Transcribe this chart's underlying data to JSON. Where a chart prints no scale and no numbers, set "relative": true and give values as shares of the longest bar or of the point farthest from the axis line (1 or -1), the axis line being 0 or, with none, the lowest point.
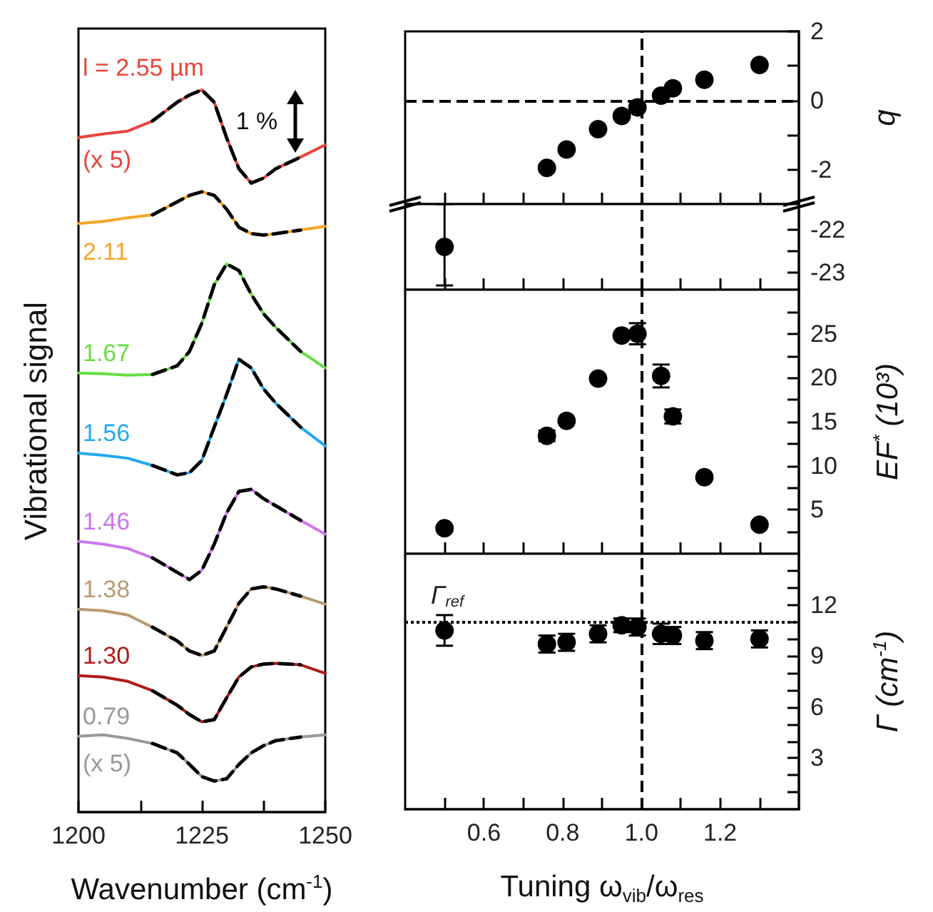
{
  "chart_data": [
    {
      "type": "line",
      "relative": true,
      "xlabel": "Wavenumber (cm$^{-1}$)",
      "ylabel": "Vibrational signal",
      "xlim": [
        1200,
        1250
      ],
      "xticks": [
        1200,
        {
          "value": 1212.5,
          "label": null
        },
        1225,
        {
          "value": 1237.5,
          "label": null
        },
        1250
      ],
      "x": [
        1200,
        1205,
        1210,
        1215,
        1220,
        1222.5,
        1225,
        1227.5,
        1230,
        1232.5,
        1235,
        1237.5,
        1240,
        1245,
        1250
      ],
      "annotations": [
        "(x 5)",
        "(x 5)",
        "1 %"
      ],
      "series": [
        {
          "name": "l = 2.55 µm",
          "color": "#e8453c",
          "line_style": "solid",
          "values": [
            0.934,
            0.939,
            0.943,
            0.957,
            0.983,
            0.993,
            1.0,
            0.983,
            0.934,
            0.891,
            0.871,
            0.878,
            0.891,
            0.907,
            0.924
          ]
        },
        {
          "name": "2.11",
          "color": "#f5a623",
          "line_style": "solid",
          "values": [
            0.815,
            0.818,
            0.823,
            0.827,
            0.845,
            0.854,
            0.859,
            0.854,
            0.835,
            0.81,
            0.801,
            0.799,
            0.801,
            0.806,
            0.811
          ]
        },
        {
          "name": "1.67",
          "color": "#66dd44",
          "line_style": "solid",
          "values": [
            0.608,
            0.607,
            0.605,
            0.606,
            0.618,
            0.638,
            0.677,
            0.73,
            0.759,
            0.75,
            0.717,
            0.69,
            0.671,
            0.638,
            0.615
          ]
        },
        {
          "name": "1.56",
          "color": "#22aaee",
          "line_style": "solid",
          "values": [
            0.497,
            0.494,
            0.49,
            0.48,
            0.467,
            0.47,
            0.487,
            0.533,
            0.578,
            0.627,
            0.615,
            0.586,
            0.566,
            0.533,
            0.507
          ]
        },
        {
          "name": "1.46",
          "color": "#cc77ee",
          "line_style": "solid",
          "values": [
            0.375,
            0.371,
            0.365,
            0.352,
            0.332,
            0.322,
            0.335,
            0.371,
            0.414,
            0.444,
            0.447,
            0.434,
            0.424,
            0.404,
            0.385
          ]
        },
        {
          "name": "1.38",
          "color": "#b89a72",
          "line_style": "solid",
          "values": [
            0.281,
            0.279,
            0.273,
            0.256,
            0.237,
            0.223,
            0.217,
            0.223,
            0.256,
            0.289,
            0.309,
            0.312,
            0.309,
            0.299,
            0.288
          ]
        },
        {
          "name": "1.30",
          "color": "#b01c1c",
          "line_style": "solid",
          "values": [
            0.189,
            0.187,
            0.181,
            0.168,
            0.148,
            0.135,
            0.125,
            0.128,
            0.158,
            0.187,
            0.201,
            0.205,
            0.206,
            0.204,
            0.192
          ]
        },
        {
          "name": "0.79",
          "color": "#999999",
          "line_style": "solid",
          "values": [
            0.105,
            0.107,
            0.102,
            0.095,
            0.082,
            0.066,
            0.049,
            0.043,
            0.046,
            0.066,
            0.082,
            0.092,
            0.099,
            0.104,
            0.107
          ]
        },
        {
          "color": "#000000",
          "line_style": "dashed",
          "x": [
            1215,
            1220,
            1222.5,
            1225,
            1227.5,
            1230,
            1232.5,
            1235,
            1237.5,
            1240,
            1245
          ],
          "values": [
            0.957,
            0.983,
            0.993,
            1.0,
            0.983,
            0.934,
            0.891,
            0.871,
            0.878,
            0.891,
            0.907
          ]
        },
        {
          "color": "#000000",
          "line_style": "dashed",
          "x": [
            1215,
            1220,
            1222.5,
            1225,
            1227.5,
            1230,
            1232.5,
            1235,
            1237.5,
            1240,
            1245
          ],
          "values": [
            0.827,
            0.845,
            0.854,
            0.859,
            0.854,
            0.835,
            0.81,
            0.801,
            0.799,
            0.801,
            0.806
          ]
        },
        {
          "color": "#000000",
          "line_style": "dashed",
          "x": [
            1215,
            1220,
            1222.5,
            1225,
            1227.5,
            1230,
            1232.5,
            1235,
            1237.5,
            1240,
            1245
          ],
          "values": [
            0.606,
            0.618,
            0.638,
            0.677,
            0.73,
            0.759,
            0.75,
            0.717,
            0.69,
            0.671,
            0.638
          ]
        },
        {
          "color": "#000000",
          "line_style": "dashed",
          "x": [
            1215,
            1220,
            1222.5,
            1225,
            1227.5,
            1230,
            1232.5,
            1235,
            1237.5,
            1240,
            1245
          ],
          "values": [
            0.48,
            0.467,
            0.47,
            0.487,
            0.533,
            0.578,
            0.627,
            0.615,
            0.586,
            0.566,
            0.533
          ]
        },
        {
          "color": "#000000",
          "line_style": "dashed",
          "x": [
            1215,
            1220,
            1222.5,
            1225,
            1227.5,
            1230,
            1232.5,
            1235,
            1237.5,
            1240,
            1245
          ],
          "values": [
            0.352,
            0.332,
            0.322,
            0.335,
            0.371,
            0.414,
            0.444,
            0.447,
            0.434,
            0.424,
            0.404
          ]
        },
        {
          "color": "#000000",
          "line_style": "dashed",
          "x": [
            1215,
            1220,
            1222.5,
            1225,
            1227.5,
            1230,
            1232.5,
            1235,
            1237.5,
            1240,
            1245
          ],
          "values": [
            0.256,
            0.237,
            0.223,
            0.217,
            0.223,
            0.256,
            0.289,
            0.309,
            0.312,
            0.309,
            0.299
          ]
        },
        {
          "color": "#000000",
          "line_style": "dashed",
          "x": [
            1215,
            1220,
            1222.5,
            1225,
            1227.5,
            1230,
            1232.5,
            1235,
            1237.5,
            1240,
            1245
          ],
          "values": [
            0.168,
            0.148,
            0.135,
            0.125,
            0.128,
            0.158,
            0.187,
            0.201,
            0.205,
            0.206,
            0.204
          ]
        },
        {
          "color": "#000000",
          "line_style": "dashed",
          "x": [
            1215,
            1220,
            1222.5,
            1225,
            1227.5,
            1230,
            1232.5,
            1235,
            1237.5,
            1240,
            1245
          ],
          "values": [
            0.095,
            0.082,
            0.066,
            0.049,
            0.043,
            0.046,
            0.066,
            0.082,
            0.092,
            0.099,
            0.104
          ]
        }
      ]
    },
    {
      "type": "scatter",
      "ylabel": "q",
      "marker": "circle",
      "tick_labels": "y",
      "xlim": [
        0.4,
        1.4
      ],
      "xticks": [
        {
          "value": 0.5,
          "label": null
        },
        {
          "value": 0.6,
          "label": null
        },
        {
          "value": 0.7,
          "label": null
        },
        {
          "value": 0.8,
          "label": null
        },
        {
          "value": 0.9,
          "label": null
        },
        {
          "value": 1.0,
          "label": null
        },
        {
          "value": 1.1,
          "label": null
        },
        {
          "value": 1.2,
          "label": null
        },
        {
          "value": 1.3,
          "label": null
        }
      ],
      "ylim": [
        -3,
        2
      ],
      "yticks": [
        -2,
        {
          "value": -1,
          "label": null
        },
        0,
        {
          "value": 1,
          "label": null
        },
        2
      ],
      "ref_lines": [
        {
          "axis": "y",
          "value": 0,
          "line_style": "dashed",
          "color": "#000000"
        },
        {
          "axis": "x",
          "value": 1.0,
          "line_style": "dashed",
          "color": "#000000"
        }
      ],
      "x": [
        0.76,
        0.81,
        0.89,
        0.95,
        0.99,
        1.05,
        1.08,
        1.16,
        1.3
      ],
      "series": [
        {
          "color": "#000000",
          "values": [
            -1.95,
            -1.42,
            -0.83,
            -0.45,
            -0.2,
            0.14,
            0.35,
            0.6,
            1.03
          ],
          "xerrors": [
            0.02,
            0.02,
            0.02,
            0.02,
            0.02,
            0.02,
            0.02,
            0.02,
            0.02
          ]
        }
      ]
    },
    {
      "type": "scatter",
      "marker": "circle",
      "tick_labels": "y",
      "xlim": [
        0.4,
        1.4
      ],
      "xticks": [
        {
          "value": 0.5,
          "label": null
        },
        {
          "value": 0.6,
          "label": null
        },
        {
          "value": 0.7,
          "label": null
        },
        {
          "value": 0.8,
          "label": null
        },
        {
          "value": 0.9,
          "label": null
        },
        {
          "value": 1.0,
          "label": null
        },
        {
          "value": 1.1,
          "label": null
        },
        {
          "value": 1.2,
          "label": null
        },
        {
          "value": 1.3,
          "label": null
        }
      ],
      "ylim": [
        -23.4,
        -21.4
      ],
      "yticks": [
        -23,
        {
          "value": -22.5,
          "label": null
        },
        -22
      ],
      "ref_lines": [
        {
          "axis": "x",
          "value": 1.0,
          "line_style": "dashed",
          "color": "#000000"
        }
      ],
      "x": [
        0.5
      ],
      "series": [
        {
          "color": "#000000",
          "values": [
            -22.4
          ],
          "errors": [
            [
              -23.3,
              -21.4
            ]
          ]
        }
      ]
    },
    {
      "type": "scatter",
      "ylabel": "EF$^{*}$ (10³)",
      "marker": "circle",
      "tick_labels": "y",
      "xlim": [
        0.4,
        1.4
      ],
      "xticks": [
        {
          "value": 0.5,
          "label": null
        },
        {
          "value": 0.6,
          "label": null
        },
        {
          "value": 0.7,
          "label": null
        },
        {
          "value": 0.8,
          "label": null
        },
        {
          "value": 0.9,
          "label": null
        },
        {
          "value": 1.0,
          "label": null
        },
        {
          "value": 1.1,
          "label": null
        },
        {
          "value": 1.2,
          "label": null
        },
        {
          "value": 1.3,
          "label": null
        }
      ],
      "ylim": [
        0,
        30
      ],
      "yticks": [
        {
          "value": 2.5,
          "label": null
        },
        5,
        {
          "value": 7.5,
          "label": null
        },
        10,
        {
          "value": 12.5,
          "label": null
        },
        15,
        {
          "value": 17.5,
          "label": null
        },
        20,
        {
          "value": 22.5,
          "label": null
        },
        25,
        {
          "value": 27.5,
          "label": null
        }
      ],
      "ref_lines": [
        {
          "axis": "x",
          "value": 1.0,
          "line_style": "dashed",
          "color": "#000000"
        }
      ],
      "x": [
        0.5,
        0.76,
        0.81,
        0.89,
        0.95,
        0.99,
        1.05,
        1.08,
        1.16,
        1.3
      ],
      "series": [
        {
          "color": "#000000",
          "values": [
            2.9,
            13.4,
            15.1,
            19.9,
            24.8,
            25.0,
            20.2,
            15.6,
            8.7,
            3.3
          ],
          "errors": [
            null,
            0.6,
            null,
            null,
            null,
            1.2,
            1.3,
            0.8,
            null,
            null
          ],
          "xerrors": [
            0.02,
            0.02,
            0.02,
            0.02,
            0.02,
            0.02,
            0.02,
            0.02,
            0.02,
            0.02
          ]
        }
      ]
    },
    {
      "type": "scatter",
      "xlabel": "Tuning ω$_{vib}$/ω$_{res}$",
      "ylabel": "Γ (cm$^{-1}$)",
      "marker": "circle",
      "xlim": [
        0.4,
        1.4
      ],
      "xticks": [
        {
          "value": 0.5,
          "label": null
        },
        {
          "value": 0.6,
          "label": "0.6"
        },
        {
          "value": 0.7,
          "label": null
        },
        {
          "value": 0.8,
          "label": "0.8"
        },
        {
          "value": 0.9,
          "label": null
        },
        {
          "value": 1.0,
          "label": "1.0"
        },
        {
          "value": 1.1,
          "label": null
        },
        {
          "value": 1.2,
          "label": "1.2"
        },
        {
          "value": 1.3,
          "label": null
        }
      ],
      "ylim": [
        0,
        15
      ],
      "yticks": [
        {
          "value": 1,
          "label": null
        },
        {
          "value": 2,
          "label": null
        },
        3,
        {
          "value": 4,
          "label": null
        },
        {
          "value": 5,
          "label": null
        },
        6,
        {
          "value": 7,
          "label": null
        },
        {
          "value": 8,
          "label": null
        },
        9,
        {
          "value": 10,
          "label": null
        },
        {
          "value": 11,
          "label": null
        },
        12,
        {
          "value": 13,
          "label": null
        },
        {
          "value": 14,
          "label": null
        }
      ],
      "ref_lines": [
        {
          "axis": "x",
          "value": 1.0,
          "line_style": "dashed",
          "color": "#000000"
        },
        {
          "axis": "y",
          "value": 11,
          "label": "Γ$_{ref}$",
          "line_style": "dotted",
          "color": "#000000"
        }
      ],
      "x": [
        0.5,
        0.76,
        0.81,
        0.89,
        0.95,
        0.99,
        1.05,
        1.08,
        1.16,
        1.3
      ],
      "series": [
        {
          "color": "#000000",
          "values": [
            10.5,
            9.7,
            9.8,
            10.3,
            10.8,
            10.7,
            10.3,
            10.2,
            9.9,
            10.0
          ],
          "errors": [
            0.9,
            0.5,
            0.5,
            0.5,
            0.4,
            0.5,
            0.6,
            0.5,
            0.5,
            0.5
          ]
        }
      ]
    }
  ]
}
